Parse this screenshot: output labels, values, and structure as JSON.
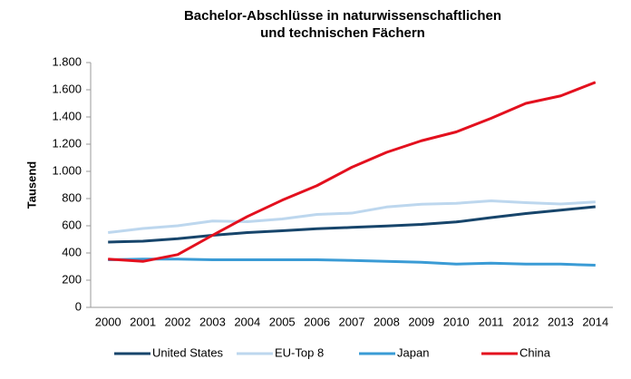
{
  "chart_data": {
    "type": "line",
    "title": "Bachelor-Abschlüsse  in naturwissenschaftlichen und technischen Fächern",
    "ylabel": "Tausend",
    "categories": [
      "2000",
      "2001",
      "2002",
      "2003",
      "2004",
      "2005",
      "2006",
      "2007",
      "2008",
      "2009",
      "2010",
      "2011",
      "2012",
      "2013",
      "2014"
    ],
    "series": [
      {
        "name": "United States",
        "color": "#17456b",
        "values": [
          480,
          487,
          505,
          530,
          550,
          563,
          578,
          588,
          598,
          610,
          628,
          660,
          690,
          715,
          740
        ]
      },
      {
        "name": "EU-Top 8",
        "color": "#bdd7ee",
        "values": [
          550,
          580,
          600,
          635,
          630,
          650,
          683,
          693,
          738,
          758,
          765,
          783,
          770,
          760,
          775
        ]
      },
      {
        "name": "Japan",
        "color": "#3a9bd5",
        "values": [
          350,
          355,
          355,
          350,
          350,
          350,
          350,
          345,
          338,
          332,
          318,
          325,
          318,
          318,
          310
        ]
      },
      {
        "name": "China",
        "color": "#e3101e",
        "values": [
          355,
          338,
          388,
          530,
          668,
          788,
          895,
          1030,
          1140,
          1225,
          1290,
          1390,
          1500,
          1555,
          1655
        ]
      }
    ],
    "ylim": [
      0,
      1800
    ],
    "yticks": [
      0,
      200,
      400,
      600,
      800,
      {
        "value": 1000,
        "label": "1.000"
      },
      {
        "value": 1200,
        "label": "1.200"
      },
      {
        "value": 1400,
        "label": "1.400"
      },
      {
        "value": 1600,
        "label": "1.600"
      },
      {
        "value": 1800,
        "label": "1.800"
      }
    ],
    "legend": "bottom"
  }
}
